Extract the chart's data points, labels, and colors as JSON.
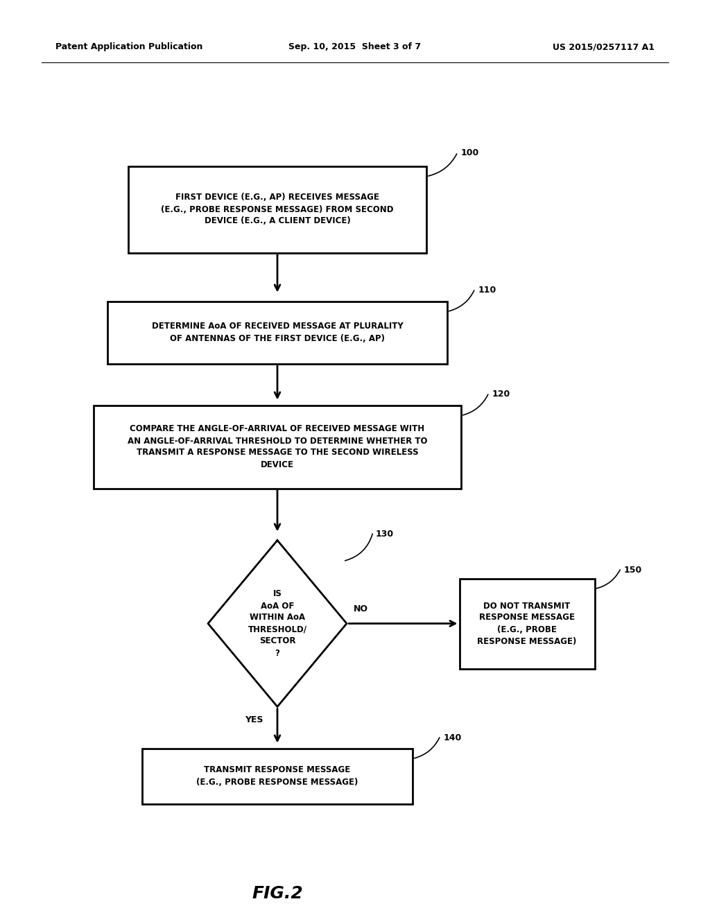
{
  "header_left": "Patent Application Publication",
  "header_mid": "Sep. 10, 2015  Sheet 3 of 7",
  "header_right": "US 2015/0257117 A1",
  "fig_label": "FIG.2",
  "box100_text": "FIRST DEVICE (E.G., AP) RECEIVES MESSAGE\n(E.G., PROBE RESPONSE MESSAGE) FROM SECOND\nDEVICE (E.G., A CLIENT DEVICE)",
  "box100_label": "100",
  "box110_text": "DETERMINE AoA OF RECEIVED MESSAGE AT PLURALITY\nOF ANTENNAS OF THE FIRST DEVICE (E.G., AP)",
  "box110_label": "110",
  "box120_text": "COMPARE THE ANGLE-OF-ARRIVAL OF RECEIVED MESSAGE WITH\nAN ANGLE-OF-ARRIVAL THRESHOLD TO DETERMINE WHETHER TO\nTRANSMIT A RESPONSE MESSAGE TO THE SECOND WIRELESS\nDEVICE",
  "box120_label": "120",
  "diamond130_text": "IS\nAoA OF\nWITHIN AoA\nTHRESHOLD/\nSECTOR\n?",
  "diamond130_label": "130",
  "box140_text": "TRANSMIT RESPONSE MESSAGE\n(E.G., PROBE RESPONSE MESSAGE)",
  "box140_label": "140",
  "box150_text": "DO NOT TRANSMIT\nRESPONSE MESSAGE\n(E.G., PROBE\nRESPONSE MESSAGE)",
  "box150_label": "150",
  "yes_label": "YES",
  "no_label": "NO",
  "bg_color": "#ffffff",
  "box_edge_color": "#000000",
  "text_color": "#000000"
}
